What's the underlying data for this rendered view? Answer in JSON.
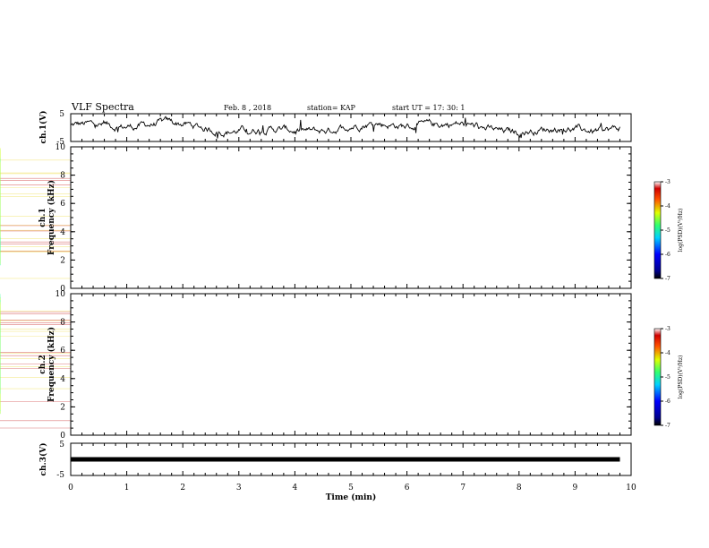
{
  "header": {
    "title": "VLF Spectra",
    "date": "Feb. 8 , 2018",
    "station": "station= KAP",
    "start": "start  UT =   17: 30: 1"
  },
  "chart_data": [
    {
      "type": "line",
      "id": "ch1-waveform",
      "ylabel": "ch.1(V)",
      "xlim": [
        0,
        10
      ],
      "ylim": [
        -5,
        5
      ],
      "yticks": [
        "5",
        "-5"
      ],
      "x_end": 9.8
    },
    {
      "type": "heatmap",
      "id": "ch1-spectrogram",
      "ylabel": "ch.1",
      "ylabel2": "Frequency  (kHz)",
      "xlim": [
        0,
        10
      ],
      "ylim": [
        0,
        10
      ],
      "yticks": [
        "0",
        "2",
        "4",
        "6",
        "8",
        "10"
      ],
      "colorbar": {
        "label": "log(PSD)(V²/Hz)",
        "range": [
          -7,
          -3
        ],
        "ticks": [
          "-3",
          "-4",
          "-5",
          "-6",
          "-7"
        ]
      }
    },
    {
      "type": "heatmap",
      "id": "ch2-spectrogram",
      "ylabel": "ch.2",
      "ylabel2": "Frequency  (kHz)",
      "xlim": [
        0,
        10
      ],
      "ylim": [
        0,
        10
      ],
      "yticks": [
        "0",
        "2",
        "4",
        "6",
        "8",
        "10"
      ],
      "colorbar": {
        "label": "log(PSD)(V²/Hz)",
        "range": [
          -7,
          -3
        ],
        "ticks": [
          "-3",
          "-4",
          "-5",
          "-6",
          "-7"
        ]
      }
    },
    {
      "type": "line",
      "id": "ch3-waveform",
      "ylabel": "ch.3(V)",
      "xlim": [
        0,
        10
      ],
      "ylim": [
        -5,
        5
      ],
      "yticks": [
        "5",
        "-5"
      ],
      "level": 0,
      "x_end": 9.8
    }
  ],
  "xaxis": {
    "label": "Time  (min)",
    "ticks": [
      "0",
      "1",
      "2",
      "3",
      "4",
      "5",
      "6",
      "7",
      "8",
      "9",
      "10"
    ]
  }
}
